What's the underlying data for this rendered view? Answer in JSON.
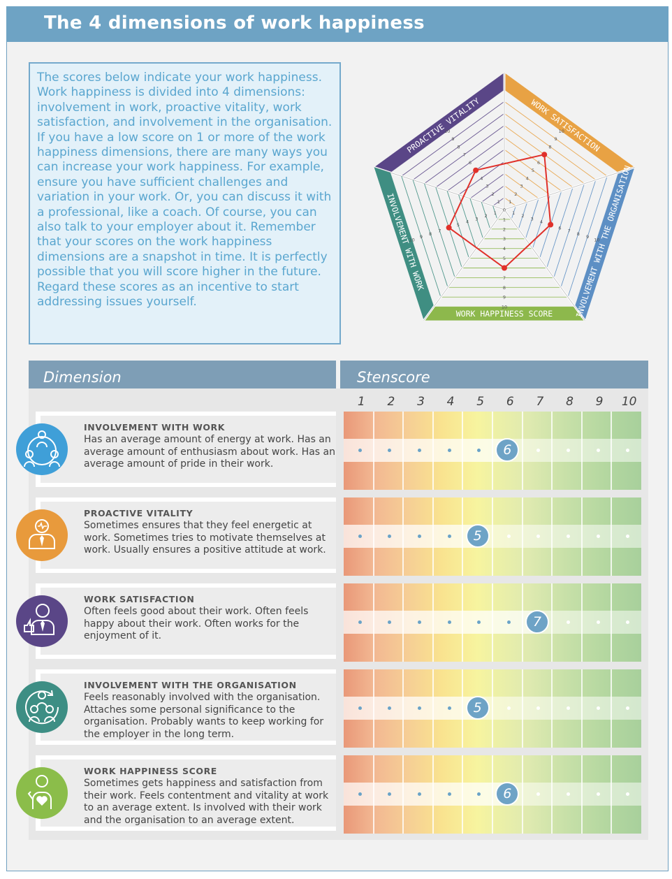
{
  "header": {
    "title": "The 4 dimensions of work happiness"
  },
  "intro": {
    "text": "The scores below indicate your work happiness. Work happiness is divided into 4 dimensions: involvement in work, proactive vitality, work satisfaction, and involvement in the organisation. If you have a low score on 1 or more of the work happiness dimensions, there are many ways you can increase your work happiness. For example, ensure you have sufficient challenges and variation in your work. Or, you can discuss it with a professional, like a coach. Of course, you can also talk to your employer about it. Remember that your scores on the work happiness dimensions are a snapshot in time. It is perfectly possible that you will score higher in the future. Regard these scores as an incentive to start addressing issues yourself."
  },
  "colors": {
    "header": "#6ea3c4",
    "intro_text": "#5aa6cf",
    "radar_line": "#e0302a",
    "score_badge": "#6ea3c6"
  },
  "table": {
    "col_dimension": "Dimension",
    "col_stenscore": "Stenscore",
    "scale": [
      "1",
      "2",
      "3",
      "4",
      "5",
      "6",
      "7",
      "8",
      "9",
      "10"
    ]
  },
  "chart_data": {
    "type": "radar",
    "axes": [
      {
        "name": "PROACTIVE VITALITY",
        "color": "#5a4687",
        "value": 5
      },
      {
        "name": "WORK SATISFACTION",
        "color": "#e8a244",
        "value": 7
      },
      {
        "name": "INVOLVEMENT WITH THE ORGANISATION",
        "color": "#5d8fc4",
        "value": 5
      },
      {
        "name": "WORK HAPPINESS SCORE",
        "color": "#8db84c",
        "value": 6
      },
      {
        "name": "INVOLVEMENT WITH WORK",
        "color": "#3f8e82",
        "value": 6
      }
    ],
    "ticks": [
      "0",
      "1",
      "2",
      "3",
      "4",
      "5",
      "6",
      "7",
      "8",
      "9",
      "10"
    ],
    "range": [
      0,
      10
    ]
  },
  "rows": [
    {
      "title": "INVOLVEMENT WITH WORK",
      "desc": "Has an average amount of energy at work. Has an average amount of enthusiasm about work. Has an average amount of pride in their work.",
      "score": 6,
      "score_label": "6",
      "icon": "group-network-icon",
      "icon_color": "#3f9fd8"
    },
    {
      "title": "PROACTIVE VITALITY",
      "desc": "Sometimes ensures that they feel energetic at work. Sometimes tries to motivate themselves at work. Usually ensures a positive attitude at work.",
      "score": 5,
      "score_label": "5",
      "icon": "heartbeat-person-icon",
      "icon_color": "#e89a3c"
    },
    {
      "title": "WORK SATISFACTION",
      "desc": "Often feels good about their work. Often feels happy about their work. Often works for the enjoyment of it.",
      "score": 7,
      "score_label": "7",
      "icon": "thumbs-up-person-icon",
      "icon_color": "#5a4687"
    },
    {
      "title": "INVOLVEMENT WITH THE ORGANISATION",
      "desc": "Feels reasonably involved with the organisation. Attaches some personal significance to the organisation. Probably wants to keep working for the employer in the long term.",
      "score": 5,
      "score_label": "5",
      "icon": "organisation-cycle-icon",
      "icon_color": "#3d8e84"
    },
    {
      "title": "WORK HAPPINESS SCORE",
      "desc": "Sometimes gets happiness and satisfaction from their work. Feels contentment and vitality at work to an average extent. Is involved with their work and the organisation to an average extent.",
      "score": 6,
      "score_label": "6",
      "icon": "heart-person-icon",
      "icon_color": "#8bbd4a"
    }
  ]
}
